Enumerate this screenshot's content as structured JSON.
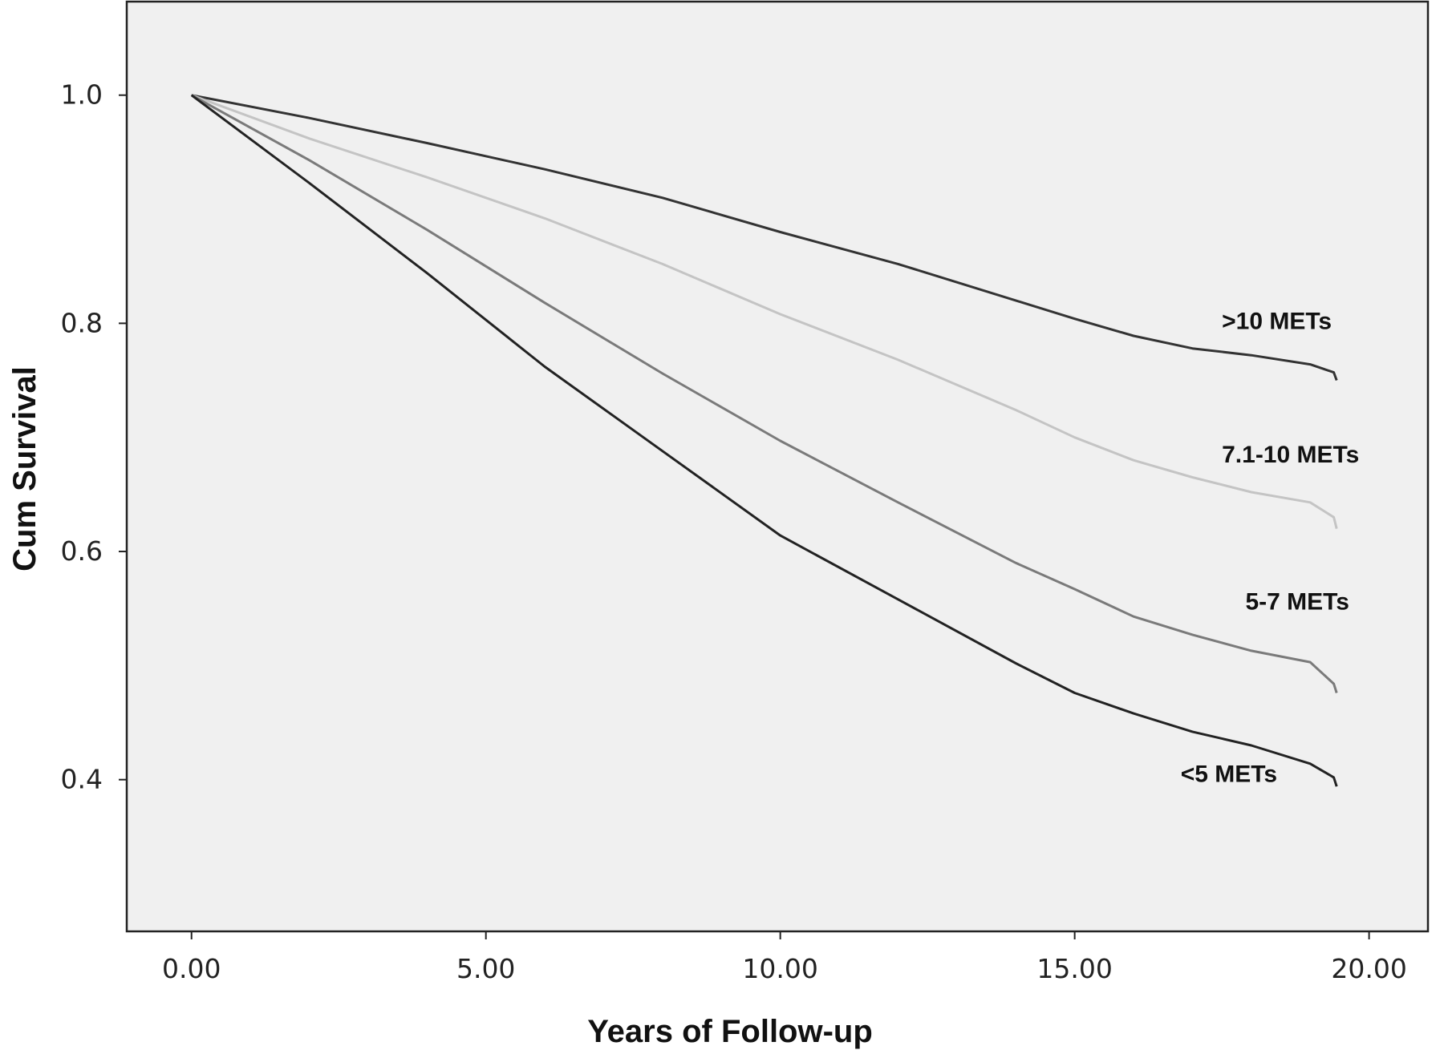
{
  "chart_data": {
    "type": "line",
    "title": "",
    "xlabel": "Years of Follow-up",
    "ylabel": "Cum Survival",
    "xlim": [
      -1.1,
      21.0
    ],
    "ylim": [
      0.267,
      1.082
    ],
    "x_ticks": [
      "0.00",
      "5.00",
      "10.00",
      "15.00",
      "20.00"
    ],
    "x_tick_values": [
      0,
      5,
      10,
      15,
      20
    ],
    "y_ticks": [
      "0.4",
      "0.6",
      "0.8",
      "1.0"
    ],
    "y_tick_values": [
      0.4,
      0.6,
      0.8,
      1.0
    ],
    "grid": false,
    "legend": "none",
    "background_color": "#f0f0f0",
    "series": [
      {
        "name": ">10 METs",
        "color": "#333333",
        "points": [
          [
            0,
            1.0
          ],
          [
            2,
            0.98
          ],
          [
            4,
            0.958
          ],
          [
            6,
            0.935
          ],
          [
            8,
            0.91
          ],
          [
            10,
            0.88
          ],
          [
            12,
            0.852
          ],
          [
            14,
            0.82
          ],
          [
            15,
            0.804
          ],
          [
            16,
            0.789
          ],
          [
            17,
            0.778
          ],
          [
            18,
            0.772
          ],
          [
            19,
            0.764
          ],
          [
            19.4,
            0.757
          ],
          [
            19.45,
            0.75
          ]
        ]
      },
      {
        "name": "7.1-10 METs",
        "color": "#c4c4c4",
        "points": [
          [
            0,
            1.0
          ],
          [
            2,
            0.962
          ],
          [
            4,
            0.928
          ],
          [
            6,
            0.892
          ],
          [
            8,
            0.852
          ],
          [
            10,
            0.808
          ],
          [
            12,
            0.768
          ],
          [
            14,
            0.724
          ],
          [
            15,
            0.7
          ],
          [
            16,
            0.68
          ],
          [
            17,
            0.665
          ],
          [
            18,
            0.652
          ],
          [
            19,
            0.643
          ],
          [
            19.4,
            0.63
          ],
          [
            19.45,
            0.62
          ]
        ]
      },
      {
        "name": "5-7 METs",
        "color": "#7a7a7a",
        "points": [
          [
            0,
            1.0
          ],
          [
            2,
            0.943
          ],
          [
            4,
            0.882
          ],
          [
            6,
            0.818
          ],
          [
            8,
            0.756
          ],
          [
            10,
            0.697
          ],
          [
            12,
            0.643
          ],
          [
            14,
            0.59
          ],
          [
            15,
            0.567
          ],
          [
            16,
            0.543
          ],
          [
            17,
            0.527
          ],
          [
            18,
            0.513
          ],
          [
            19,
            0.503
          ],
          [
            19.4,
            0.484
          ],
          [
            19.45,
            0.476
          ]
        ]
      },
      {
        "name": "<5 METs",
        "color": "#222222",
        "points": [
          [
            0,
            1.0
          ],
          [
            2,
            0.923
          ],
          [
            4,
            0.844
          ],
          [
            6,
            0.762
          ],
          [
            8,
            0.688
          ],
          [
            10,
            0.614
          ],
          [
            12,
            0.558
          ],
          [
            14,
            0.502
          ],
          [
            15,
            0.476
          ],
          [
            16,
            0.458
          ],
          [
            17,
            0.442
          ],
          [
            18,
            0.43
          ],
          [
            19,
            0.414
          ],
          [
            19.4,
            0.402
          ],
          [
            19.45,
            0.394
          ]
        ]
      }
    ],
    "annotations": [
      {
        "text": ">10 METs",
        "x": 17.5,
        "y": 0.795
      },
      {
        "text": "7.1-10 METs",
        "x": 17.5,
        "y": 0.678
      },
      {
        "text": "5-7 METs",
        "x": 17.9,
        "y": 0.549
      },
      {
        "text": "<5 METs",
        "x": 16.8,
        "y": 0.398
      }
    ]
  }
}
